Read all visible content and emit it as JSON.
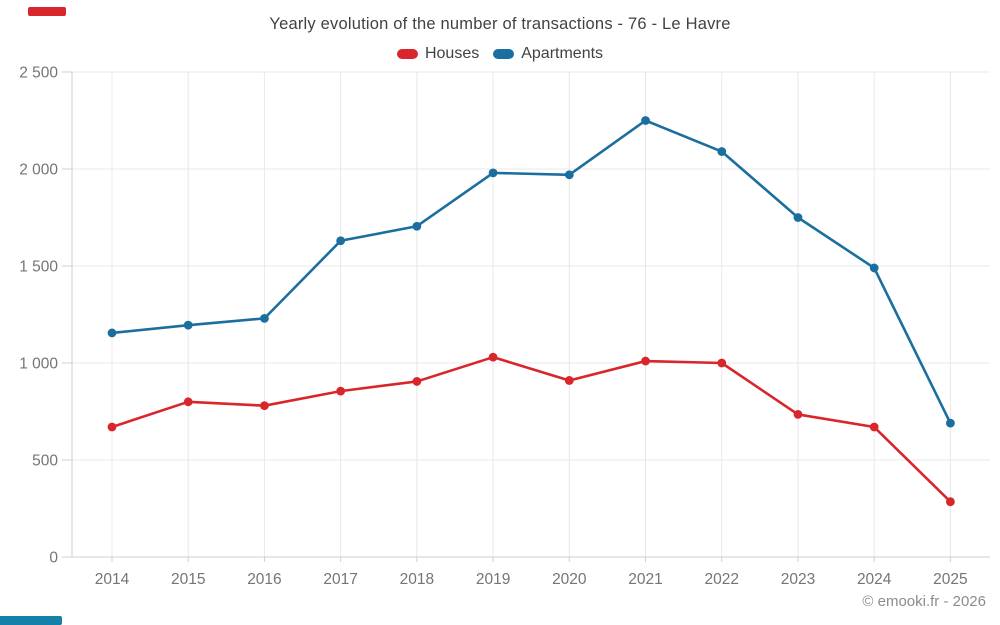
{
  "page": {
    "title": "Yearly evolution of the number of transactions - 76 - Le Havre",
    "footer_credit": "© emooki.fr - 2026"
  },
  "decorations": {
    "top_left_bar_color": "#d8262c",
    "bottom_left_bar_color": "#1581a8"
  },
  "chart_data": {
    "type": "line",
    "title": "Yearly evolution of the number of transactions - 76 - Le Havre",
    "categories": [
      "2014",
      "2015",
      "2016",
      "2017",
      "2018",
      "2019",
      "2020",
      "2021",
      "2022",
      "2023",
      "2024",
      "2025"
    ],
    "series": [
      {
        "name": "Houses",
        "color": "#d8262c",
        "values": [
          670,
          800,
          780,
          855,
          905,
          1030,
          910,
          1010,
          1000,
          735,
          670,
          285
        ]
      },
      {
        "name": "Apartments",
        "color": "#1b6f9f",
        "values": [
          1155,
          1195,
          1230,
          1630,
          1705,
          1980,
          1970,
          2250,
          2090,
          1750,
          1490,
          690
        ]
      }
    ],
    "xlabel": "",
    "ylabel": "",
    "ylim": [
      0,
      2500
    ],
    "ytick_step": 500,
    "ytick_labels": [
      "0",
      "500",
      "1 000",
      "1 500",
      "2 000",
      "2 500"
    ],
    "grid": true,
    "legend_position": "top",
    "marker": "circle",
    "axis_text_color": "#757575",
    "grid_color": "#e8e8e8",
    "axis_line_color": "#cfcfcf"
  }
}
